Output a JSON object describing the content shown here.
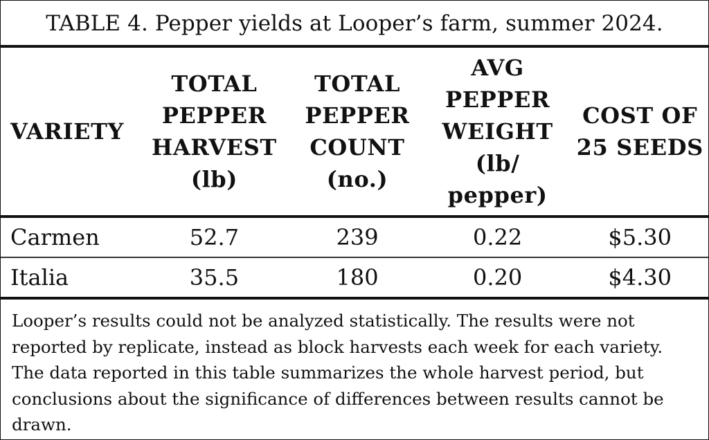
{
  "table": {
    "caption": "TABLE 4. Pepper yields at Looper’s farm, summer 2024.",
    "headers": [
      [
        "VARIETY"
      ],
      [
        "TOTAL",
        "PEPPER",
        "HARVEST",
        "(lb)"
      ],
      [
        "TOTAL",
        "PEPPER",
        "COUNT",
        "(no.)"
      ],
      [
        "AVG",
        "PEPPER",
        "WEIGHT",
        "(lb/",
        "pepper)"
      ],
      [
        "COST OF",
        "25 SEEDS"
      ]
    ],
    "rows": [
      [
        "Carmen",
        "52.7",
        "239",
        "0.22",
        "$5.30"
      ],
      [
        "Italia",
        "35.5",
        "180",
        "0.20",
        "$4.30"
      ]
    ],
    "footnote_lines": [
      "Looper’s results could not be analyzed statistically. The results were not",
      "reported by replicate, instead as block harvests each week for each variety.",
      "The data reported in this table summarizes the whole harvest period, but",
      "conclusions about the significance of differences between results cannot be",
      "drawn."
    ]
  }
}
